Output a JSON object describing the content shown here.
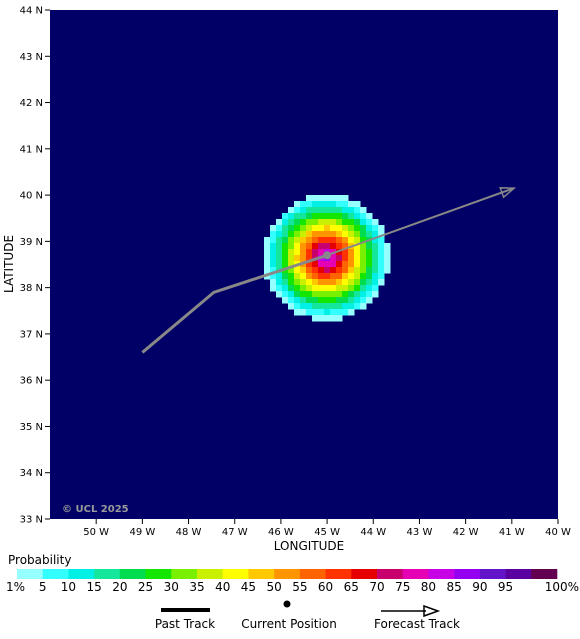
{
  "map": {
    "background_color": "#000066",
    "copyright": "© UCL 2025",
    "x_axis": {
      "title": "LONGITUDE",
      "range": [
        -51,
        -40
      ],
      "ticks": [
        {
          "value": -50,
          "label": "50 W"
        },
        {
          "value": -49,
          "label": "49 W"
        },
        {
          "value": -48,
          "label": "48 W"
        },
        {
          "value": -47,
          "label": "47 W"
        },
        {
          "value": -46,
          "label": "46 W"
        },
        {
          "value": -45,
          "label": "45 W"
        },
        {
          "value": -44,
          "label": "44 W"
        },
        {
          "value": -43,
          "label": "43 W"
        },
        {
          "value": -42,
          "label": "42 W"
        },
        {
          "value": -41,
          "label": "41 W"
        },
        {
          "value": -40,
          "label": "40 W"
        }
      ]
    },
    "y_axis": {
      "title": "LATITUDE",
      "range": [
        33,
        44
      ],
      "ticks": [
        {
          "value": 33,
          "label": "33 N"
        },
        {
          "value": 34,
          "label": "34 N"
        },
        {
          "value": 35,
          "label": "35 N"
        },
        {
          "value": 36,
          "label": "36 N"
        },
        {
          "value": 37,
          "label": "37 N"
        },
        {
          "value": 38,
          "label": "38 N"
        },
        {
          "value": 39,
          "label": "39 N"
        },
        {
          "value": 40,
          "label": "40 N"
        },
        {
          "value": 41,
          "label": "41 N"
        },
        {
          "value": 42,
          "label": "42 N"
        },
        {
          "value": 43,
          "label": "43 N"
        },
        {
          "value": 44,
          "label": "44 N"
        }
      ]
    },
    "past_track": [
      {
        "lon": -49.0,
        "lat": 36.6
      },
      {
        "lon": -47.45,
        "lat": 37.9
      },
      {
        "lon": -45.0,
        "lat": 38.7
      }
    ],
    "current_position": {
      "lon": -45.0,
      "lat": 38.7
    },
    "forecast_track": [
      {
        "lon": -45.0,
        "lat": 38.7
      },
      {
        "lon": -40.95,
        "lat": 40.15
      }
    ],
    "track_color": "#888888",
    "probability_field": {
      "center_lon": -45.0,
      "center_lat": 38.65,
      "outer_radius_lon": 1.35,
      "outer_radius_lat": 1.35,
      "peak_percent": 90
    }
  },
  "probability_legend": {
    "title": "Probability",
    "bins": [
      {
        "label": "1%",
        "color": "#96ffff"
      },
      {
        "label": "5",
        "color": "#32ffff"
      },
      {
        "label": "10",
        "color": "#00f0e6"
      },
      {
        "label": "15",
        "color": "#14e69b"
      },
      {
        "label": "20",
        "color": "#00dc50"
      },
      {
        "label": "25",
        "color": "#14e600"
      },
      {
        "label": "30",
        "color": "#78f000"
      },
      {
        "label": "35",
        "color": "#c8f000"
      },
      {
        "label": "40",
        "color": "#ffff00"
      },
      {
        "label": "45",
        "color": "#ffc800"
      },
      {
        "label": "50",
        "color": "#ff9600"
      },
      {
        "label": "55",
        "color": "#ff6400"
      },
      {
        "label": "60",
        "color": "#ff3200"
      },
      {
        "label": "65",
        "color": "#e60000"
      },
      {
        "label": "70",
        "color": "#c8006e"
      },
      {
        "label": "75",
        "color": "#e600b4"
      },
      {
        "label": "80",
        "color": "#c800e6"
      },
      {
        "label": "85",
        "color": "#9600f0"
      },
      {
        "label": "90",
        "color": "#6414c8"
      },
      {
        "label": "95",
        "color": "#5a00a0"
      },
      {
        "label": "100%",
        "color": "#640050"
      }
    ]
  },
  "track_legend": {
    "past_track_label": "Past Track",
    "current_position_label": "Current Position",
    "forecast_track_label": "Forecast Track"
  }
}
